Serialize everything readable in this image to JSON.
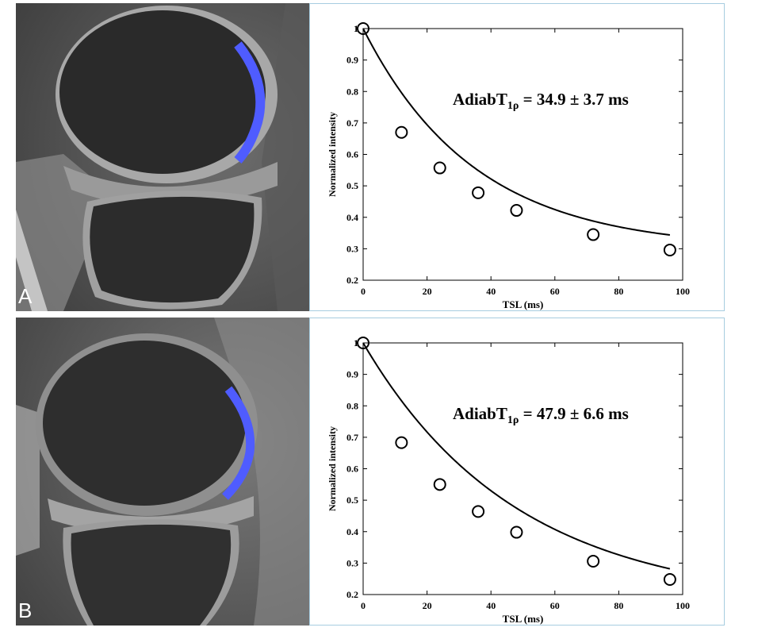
{
  "panels": [
    {
      "letter": "A",
      "chart_data": {
        "type": "scatter",
        "xlabel": "TSL (ms)",
        "ylabel": "Normalized intensity",
        "xlim": [
          0,
          100
        ],
        "ylim": [
          0.2,
          1
        ],
        "xticks": [
          "0",
          "20",
          "40",
          "60",
          "80",
          "100"
        ],
        "yticks": [
          "0.2",
          "0.3",
          "0.4",
          "0.5",
          "0.6",
          "0.7",
          "0.8",
          "0.9",
          "1"
        ],
        "annotation": {
          "main": "AdiabT",
          "sub": "1ρ",
          "rest": " = 34.9 ± 3.7 ms"
        },
        "points": [
          {
            "x": 0,
            "y": 1.0
          },
          {
            "x": 12,
            "y": 0.67
          },
          {
            "x": 24,
            "y": 0.557
          },
          {
            "x": 36,
            "y": 0.478
          },
          {
            "x": 48,
            "y": 0.422
          },
          {
            "x": 72,
            "y": 0.345
          },
          {
            "x": 96,
            "y": 0.296
          }
        ],
        "fit": {
          "a": 0.701,
          "c": 0.299,
          "t": 34.9
        }
      }
    },
    {
      "letter": "B",
      "chart_data": {
        "type": "scatter",
        "xlabel": "TSL (ms)",
        "ylabel": "Normalized intensity",
        "xlim": [
          0,
          100
        ],
        "ylim": [
          0.2,
          1
        ],
        "xticks": [
          "0",
          "20",
          "40",
          "60",
          "80",
          "100"
        ],
        "yticks": [
          "0.2",
          "0.3",
          "0.4",
          "0.5",
          "0.6",
          "0.7",
          "0.8",
          "0.9",
          "1"
        ],
        "annotation": {
          "main": "AdiabT",
          "sub": "1ρ",
          "rest": " = 47.9 ± 6.6 ms"
        },
        "points": [
          {
            "x": 0,
            "y": 1.0
          },
          {
            "x": 12,
            "y": 0.683
          },
          {
            "x": 24,
            "y": 0.55
          },
          {
            "x": 36,
            "y": 0.464
          },
          {
            "x": 48,
            "y": 0.398
          },
          {
            "x": 72,
            "y": 0.306
          },
          {
            "x": 96,
            "y": 0.248
          }
        ],
        "fit": {
          "a": 0.83,
          "c": 0.17,
          "t": 47.9
        }
      }
    }
  ],
  "colors": {
    "cartilage_overlay": "#4f5cff",
    "axis": "#000000",
    "frame": "#a7cde0"
  }
}
